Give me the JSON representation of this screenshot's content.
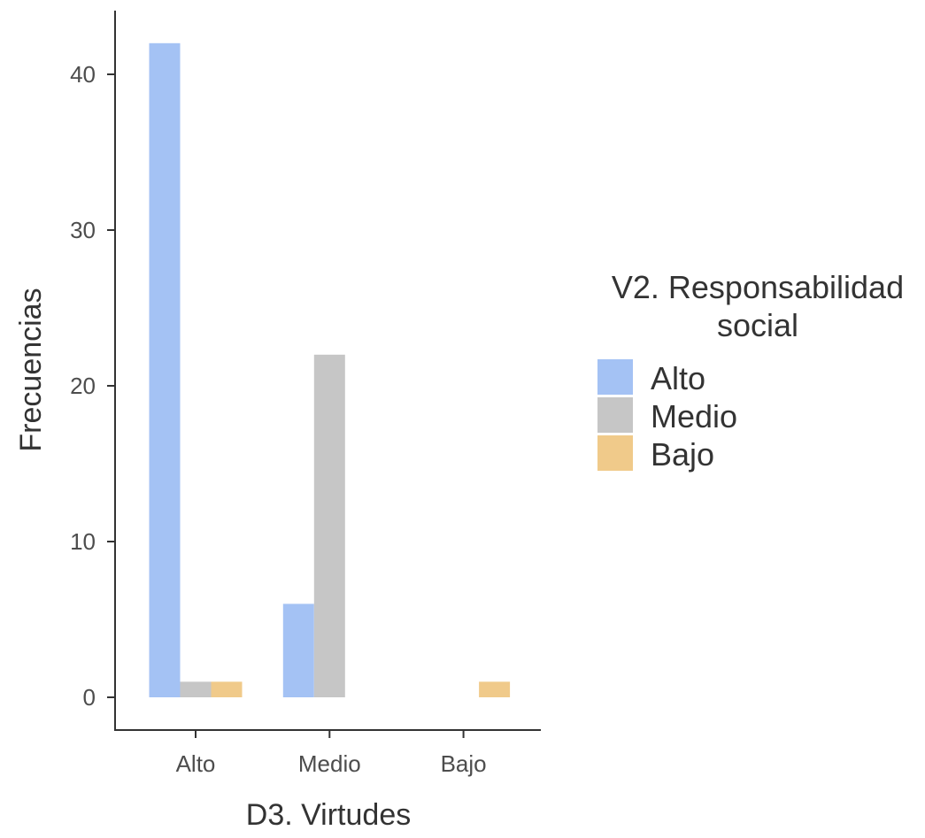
{
  "chart_data": {
    "type": "bar",
    "xlabel": "D3. Virtudes",
    "ylabel": "Frecuencias",
    "categories": [
      "Alto",
      "Medio",
      "Bajo"
    ],
    "series": [
      {
        "name": "Alto",
        "values": [
          42,
          6,
          0
        ],
        "color": "#a4c2f4"
      },
      {
        "name": "Medio",
        "values": [
          1,
          22,
          0
        ],
        "color": "#c6c6c6"
      },
      {
        "name": "Bajo",
        "values": [
          1,
          0,
          1
        ],
        "color": "#f0ca8a"
      }
    ],
    "ylim": [
      0,
      43
    ],
    "yticks": [
      0,
      10,
      20,
      30,
      40
    ],
    "grid": false,
    "legend": {
      "title_lines": [
        "V2. Responsabilidad",
        "social"
      ],
      "placement": "right"
    }
  }
}
